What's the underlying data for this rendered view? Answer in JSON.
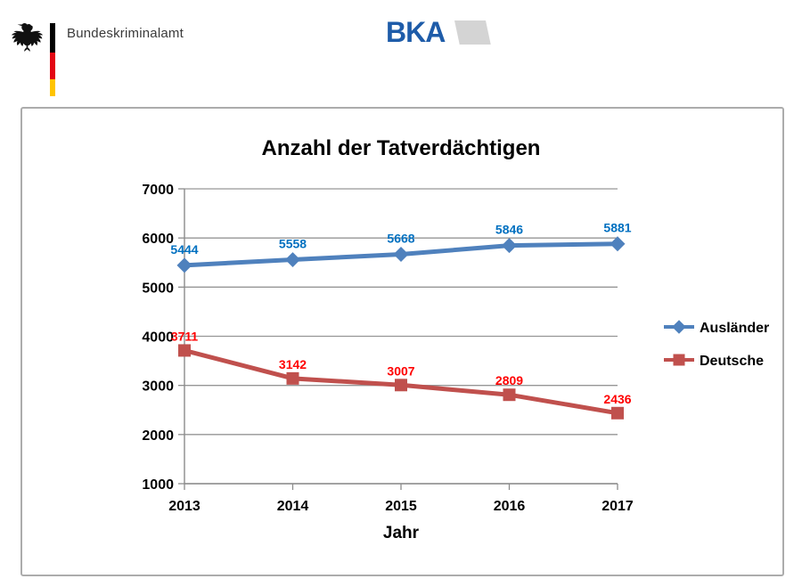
{
  "header": {
    "wordmark": "Bundeskriminalamt",
    "bka_logo_text": "BKA",
    "eagle_icon": "bundesadler-eagle",
    "flag_colors": {
      "black": "#000000",
      "red": "#E30613",
      "gold": "#FFC400"
    },
    "bka_blue": "#1E5CA9",
    "bka_gray": "#D4D4D4"
  },
  "chart_data": {
    "type": "line",
    "title": "Anzahl der Tatverdächtigen",
    "xlabel": "Jahr",
    "ylabel": "",
    "categories": [
      "2013",
      "2014",
      "2015",
      "2016",
      "2017"
    ],
    "series": [
      {
        "name": "Ausländer",
        "values": [
          5444,
          5558,
          5668,
          5846,
          5881
        ],
        "color": "#4F81BD",
        "label_color": "#0070C0",
        "marker": "diamond"
      },
      {
        "name": "Deutsche",
        "values": [
          3711,
          3142,
          3007,
          2809,
          2436
        ],
        "color": "#C0504D",
        "label_color": "#FF0000",
        "marker": "square"
      }
    ],
    "ylim": [
      1000,
      7000
    ],
    "ytick_step": 1000,
    "grid": true,
    "data_labels": true,
    "legend_position": "right"
  },
  "colors": {
    "grid": "#969696",
    "axis": "#8C8C8C",
    "panel_border": "#ACACAC"
  }
}
